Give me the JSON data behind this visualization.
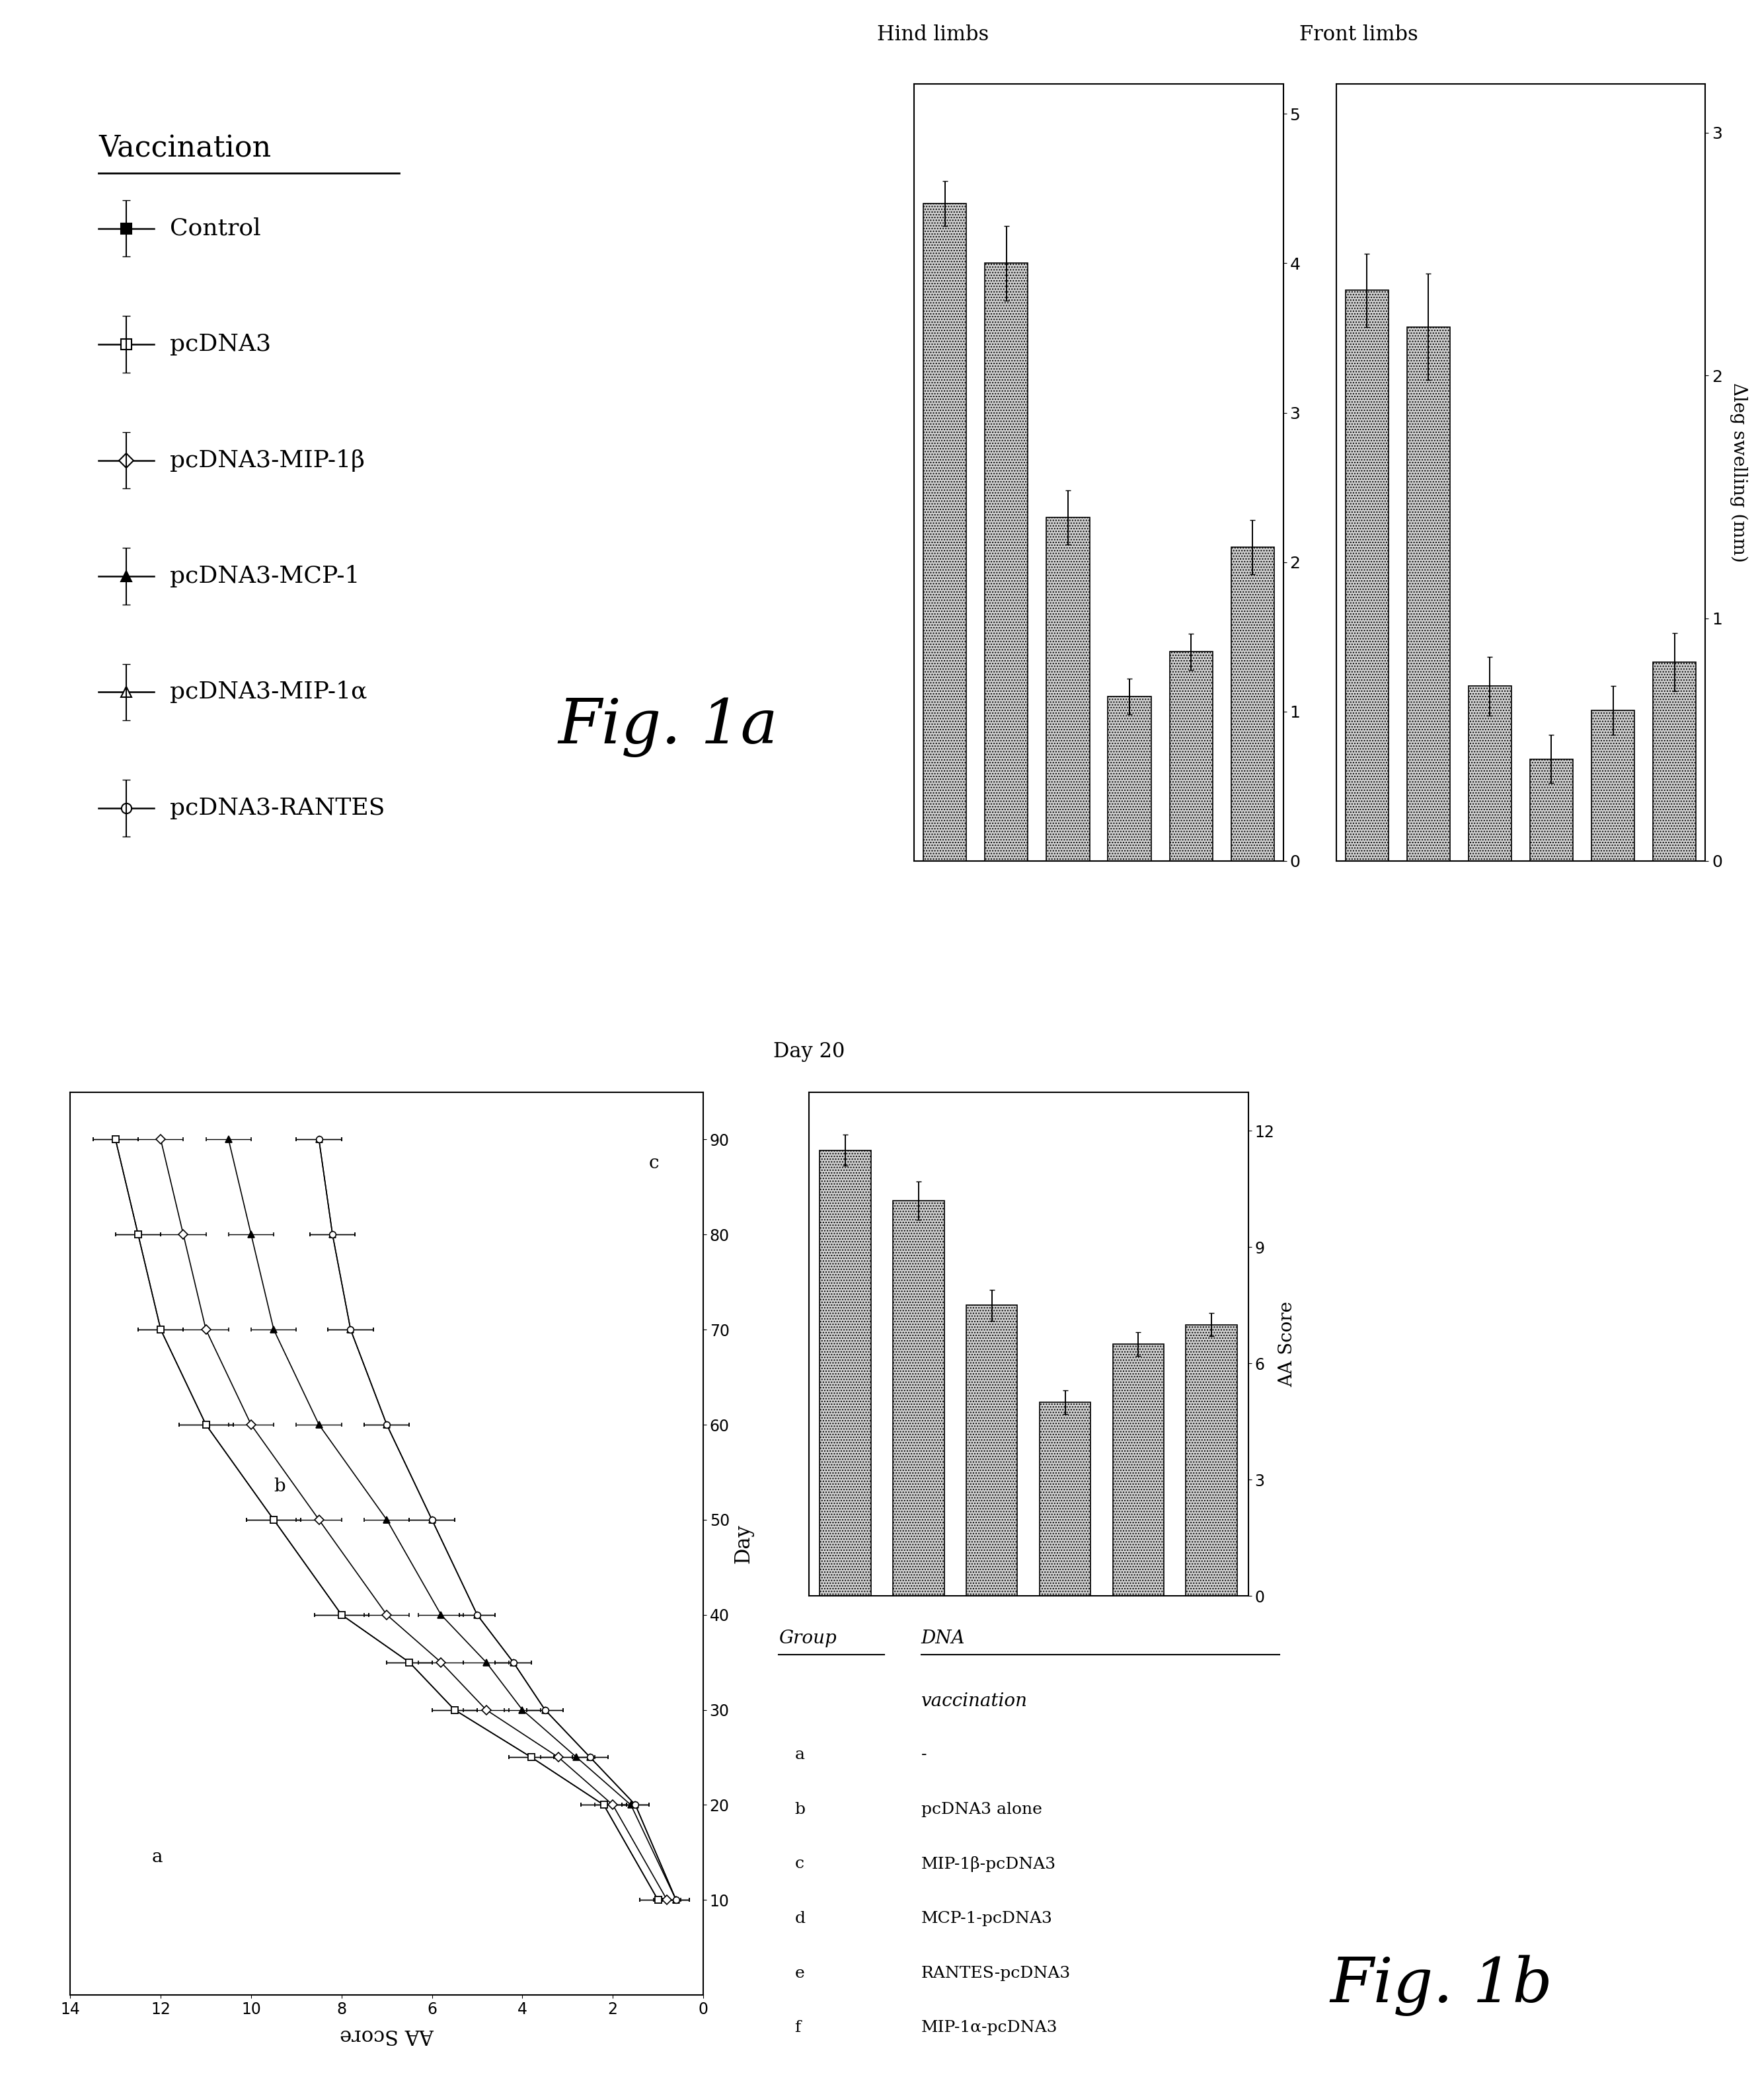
{
  "legend_labels": [
    "Control",
    "pcDNA3",
    "pcDNA3-MIP-1β",
    "pcDNA3-MCP-1",
    "pcDNA3-MIP-1α",
    "pcDNA3-RANTES"
  ],
  "legend_markers": [
    "s",
    "s",
    "D",
    "^",
    "^",
    "o"
  ],
  "legend_filled": [
    true,
    false,
    false,
    true,
    false,
    false
  ],
  "line_days": [
    10,
    20,
    25,
    30,
    35,
    40,
    50,
    60,
    70,
    80,
    90
  ],
  "line_data": {
    "control": [
      1.0,
      2.2,
      3.8,
      5.5,
      6.5,
      8.0,
      9.5,
      11.0,
      12.0,
      12.5,
      13.0
    ],
    "pcDNA3": [
      1.0,
      2.2,
      3.8,
      5.5,
      6.5,
      8.0,
      9.5,
      11.0,
      12.0,
      12.5,
      13.0
    ],
    "mip1b": [
      0.8,
      2.0,
      3.2,
      4.8,
      5.8,
      7.0,
      8.5,
      10.0,
      11.0,
      11.5,
      12.0
    ],
    "mcp1": [
      0.6,
      1.6,
      2.8,
      4.0,
      4.8,
      5.8,
      7.0,
      8.5,
      9.5,
      10.0,
      10.5
    ],
    "mip1a": [
      0.6,
      1.5,
      2.5,
      3.5,
      4.2,
      5.0,
      6.0,
      7.0,
      7.8,
      8.2,
      8.5
    ],
    "rantes": [
      0.6,
      1.5,
      2.5,
      3.5,
      4.2,
      5.0,
      6.0,
      7.0,
      7.8,
      8.2,
      8.5
    ]
  },
  "line_errors": {
    "control": [
      0.4,
      0.5,
      0.5,
      0.5,
      0.5,
      0.6,
      0.6,
      0.6,
      0.5,
      0.5,
      0.5
    ],
    "pcDNA3": [
      0.4,
      0.5,
      0.5,
      0.5,
      0.5,
      0.6,
      0.6,
      0.6,
      0.5,
      0.5,
      0.5
    ],
    "mip1b": [
      0.3,
      0.4,
      0.4,
      0.5,
      0.5,
      0.5,
      0.5,
      0.5,
      0.5,
      0.5,
      0.5
    ],
    "mcp1": [
      0.3,
      0.4,
      0.4,
      0.4,
      0.5,
      0.5,
      0.5,
      0.5,
      0.5,
      0.5,
      0.5
    ],
    "mip1a": [
      0.3,
      0.3,
      0.4,
      0.4,
      0.4,
      0.4,
      0.5,
      0.5,
      0.5,
      0.5,
      0.5
    ],
    "rantes": [
      0.3,
      0.3,
      0.4,
      0.4,
      0.4,
      0.4,
      0.5,
      0.5,
      0.5,
      0.5,
      0.5
    ]
  },
  "bar_groups": [
    "a",
    "b",
    "c",
    "d",
    "e",
    "f"
  ],
  "bar_aa_values": [
    11.5,
    10.2,
    7.5,
    5.0,
    6.5,
    7.0
  ],
  "bar_aa_errors": [
    0.4,
    0.5,
    0.4,
    0.3,
    0.3,
    0.3
  ],
  "bar_hind_values": [
    4.4,
    4.0,
    2.3,
    1.1,
    1.4,
    2.1
  ],
  "bar_hind_errors": [
    0.15,
    0.25,
    0.18,
    0.12,
    0.12,
    0.18
  ],
  "bar_front_values": [
    2.35,
    2.2,
    0.72,
    0.42,
    0.62,
    0.82
  ],
  "bar_front_errors": [
    0.15,
    0.22,
    0.12,
    0.1,
    0.1,
    0.12
  ],
  "fig1a_label": "Fig. 1a",
  "fig1b_label": "Fig. 1b",
  "day20_label": "Day 20",
  "vaccination_header": "Vaccination",
  "table_groups": [
    "a",
    "b",
    "c",
    "d",
    "e",
    "f"
  ],
  "table_dna": [
    "-",
    "pcDNA3 alone",
    "MIP-1β-pcDNA3",
    "MCP-1-pcDNA3",
    "RANTES-pcDNA3",
    "MIP-1α-pcDNA3"
  ],
  "hind_label": "Hind limbs",
  "front_label": "Front limbs",
  "ylabel_line": "AA Score",
  "xlabel_line": "Day",
  "ylabel_bar": "AA Score",
  "ylabel_swelling": "Δleg swelling (mm)",
  "group_header": "Group",
  "dna_header": "DNA",
  "vaccination_subheader": "vaccination"
}
